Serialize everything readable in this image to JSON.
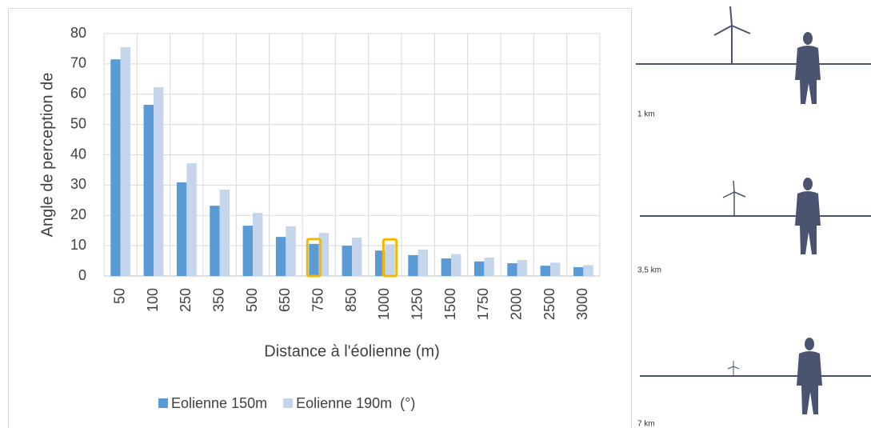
{
  "chart_data": {
    "type": "bar",
    "y_label": "Angle de perception de",
    "x_label": "Distance à l'éolienne (m)",
    "categories": [
      "50",
      "100",
      "250",
      "350",
      "500",
      "650",
      "750",
      "850",
      "1000",
      "1250",
      "1500",
      "1750",
      "2000",
      "2500",
      "3000"
    ],
    "series": [
      {
        "name": "Eolienne 150m",
        "color": "#5b9bd5",
        "values": [
          71.5,
          56.5,
          30.9,
          23.2,
          16.6,
          12.9,
          10.6,
          10.0,
          8.4,
          6.9,
          5.8,
          4.8,
          4.2,
          3.4,
          2.9
        ]
      },
      {
        "name": "Eolienne 190m  (°)",
        "color": "#c5d5ec",
        "values": [
          75.5,
          62.3,
          37.2,
          28.5,
          20.8,
          16.4,
          14.2,
          12.7,
          10.5,
          8.7,
          7.2,
          6.1,
          5.3,
          4.4,
          3.6
        ]
      }
    ],
    "ylim": [
      0,
      80
    ],
    "yticks": [
      0,
      10,
      20,
      30,
      40,
      50,
      60,
      70,
      80
    ],
    "grid": true,
    "legend": "bottom"
  },
  "illustration": {
    "labels": [
      "1 km",
      "3,5 km",
      "7 km"
    ]
  }
}
